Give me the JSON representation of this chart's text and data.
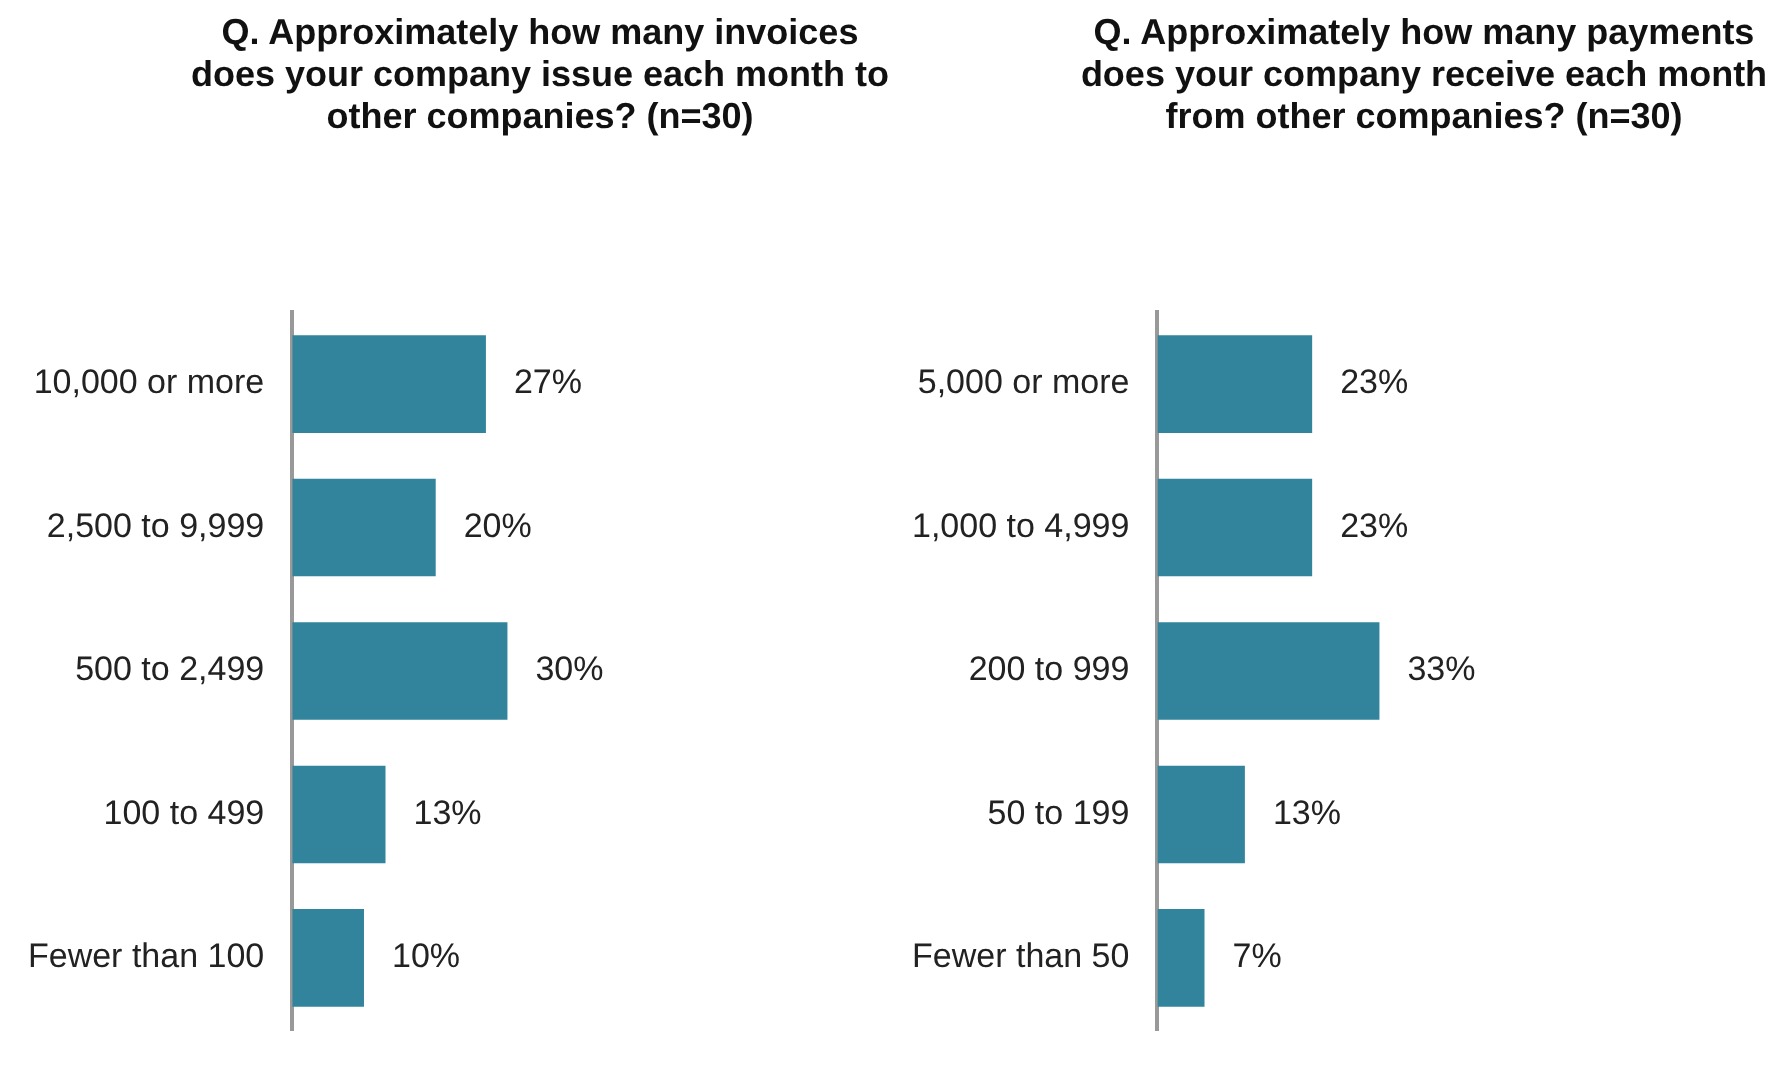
{
  "chart_data": [
    {
      "type": "bar",
      "orientation": "horizontal",
      "title": "Q. Approximately how many invoices does your company issue each month to other companies? (n=30)",
      "categories": [
        "10,000 or more",
        "2,500 to 9,999",
        "500 to 2,499",
        "100 to 499",
        "Fewer than 100"
      ],
      "values": [
        27,
        20,
        30,
        13,
        10
      ],
      "value_labels": [
        "27%",
        "20%",
        "30%",
        "13%",
        "10%"
      ],
      "color": "#31849b"
    },
    {
      "type": "bar",
      "orientation": "horizontal",
      "title": "Q. Approximately how many payments does your company receive each month from other companies? (n=30)",
      "categories": [
        "5,000 or more",
        "1,000 to 4,999",
        "200 to 999",
        "50 to 199",
        "Fewer than 50"
      ],
      "values": [
        23,
        23,
        33,
        13,
        7
      ],
      "value_labels": [
        "23%",
        "23%",
        "33%",
        "13%",
        "7%"
      ],
      "color": "#31849b"
    }
  ]
}
